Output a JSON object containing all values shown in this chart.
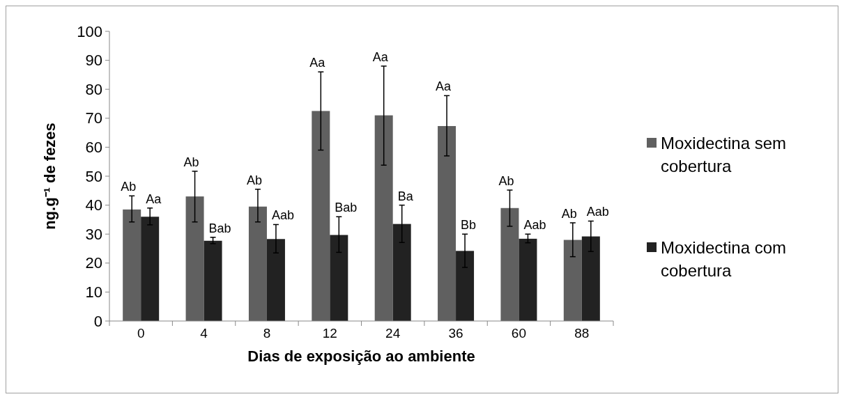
{
  "chart_data": {
    "type": "bar",
    "xlabel": "Dias de exposição ao ambiente",
    "ylabel": "ng.g⁻¹ de fezes",
    "categories": [
      "0",
      "4",
      "8",
      "12",
      "24",
      "36",
      "60",
      "88"
    ],
    "series": [
      {
        "name": "Moxidectina sem cobertura",
        "color": "#606060",
        "values": [
          38.5,
          43,
          39.5,
          72.5,
          71,
          67.3,
          39,
          28
        ],
        "errors": [
          [
            34.2,
            43.2
          ],
          [
            34.2,
            51.7
          ],
          [
            34.2,
            45.5
          ],
          [
            59,
            86
          ],
          [
            53.8,
            88
          ],
          [
            57,
            77.8
          ],
          [
            32.7,
            45.2
          ],
          [
            22.2,
            33.9
          ]
        ]
      },
      {
        "name": "Moxidectina com cobertura",
        "color": "#222222",
        "values": [
          36,
          27.7,
          28.3,
          29.7,
          33.5,
          24.2,
          28.4,
          29.2
        ],
        "errors": [
          [
            33.2,
            39
          ],
          [
            26.7,
            28.9
          ],
          [
            23.5,
            33.3
          ],
          [
            23.7,
            36
          ],
          [
            27.1,
            40
          ],
          [
            18.5,
            30
          ],
          [
            27,
            30
          ],
          [
            24,
            34.5
          ]
        ]
      }
    ],
    "ylim": [
      0,
      100
    ],
    "yticks": [
      0,
      10,
      20,
      30,
      40,
      50,
      60,
      70,
      80,
      90,
      100
    ],
    "grid": false,
    "legend": "right",
    "annotations": [
      "Ab",
      "Aa",
      "Ab",
      "Bab",
      "Ab",
      "Aab",
      "Aa",
      "Bab",
      "Aa",
      "Ba",
      "Aa",
      "Bb",
      "Ab",
      "Aab",
      "Ab",
      "Aab"
    ]
  }
}
